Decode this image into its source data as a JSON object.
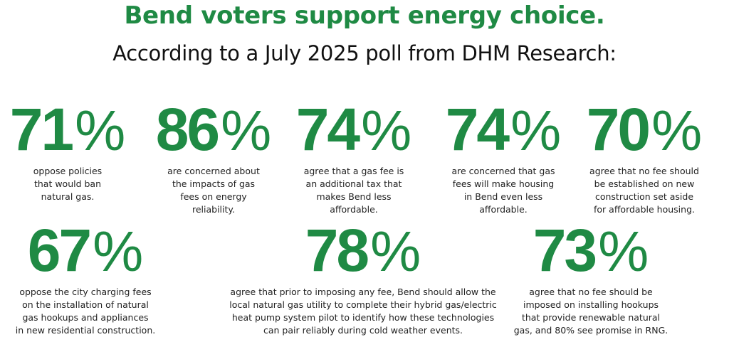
{
  "title": "Bend voters support energy choice.",
  "subtitle": "According to a July 2025 poll from DHM Research:",
  "accent_color": "#1f8a44",
  "stats": [
    {
      "value": "71",
      "unit": "%",
      "text": "oppose policies\nthat would ban\nnatural gas."
    },
    {
      "value": "86",
      "unit": "%",
      "text": "are concerned about\nthe impacts of gas\nfees on energy\nreliability."
    },
    {
      "value": "74",
      "unit": "%",
      "text": "agree that a gas fee is\nan additional tax that\nmakes Bend less\naffordable."
    },
    {
      "value": "74",
      "unit": "%",
      "text": "are concerned that gas\nfees will make housing\nin Bend even less\naffordable."
    },
    {
      "value": "70",
      "unit": "%",
      "text": "agree that no fee should\nbe established on new\nconstruction set aside\nfor affordable housing."
    },
    {
      "value": "67",
      "unit": "%",
      "text": "oppose the city charging fees\non the installation of natural\ngas hookups and appliances\nin new residential construction."
    },
    {
      "value": "78",
      "unit": "%",
      "text": "agree that prior to imposing any fee, Bend should allow the\nlocal natural gas utility to complete their hybrid gas/electric\nheat pump system pilot to identify how these technologies\ncan pair reliably during cold weather events."
    },
    {
      "value": "73",
      "unit": "%",
      "text": "agree that no fee should be\nimposed on installing hookups\nthat provide renewable natural\ngas, and 80% see promise in RNG."
    }
  ]
}
